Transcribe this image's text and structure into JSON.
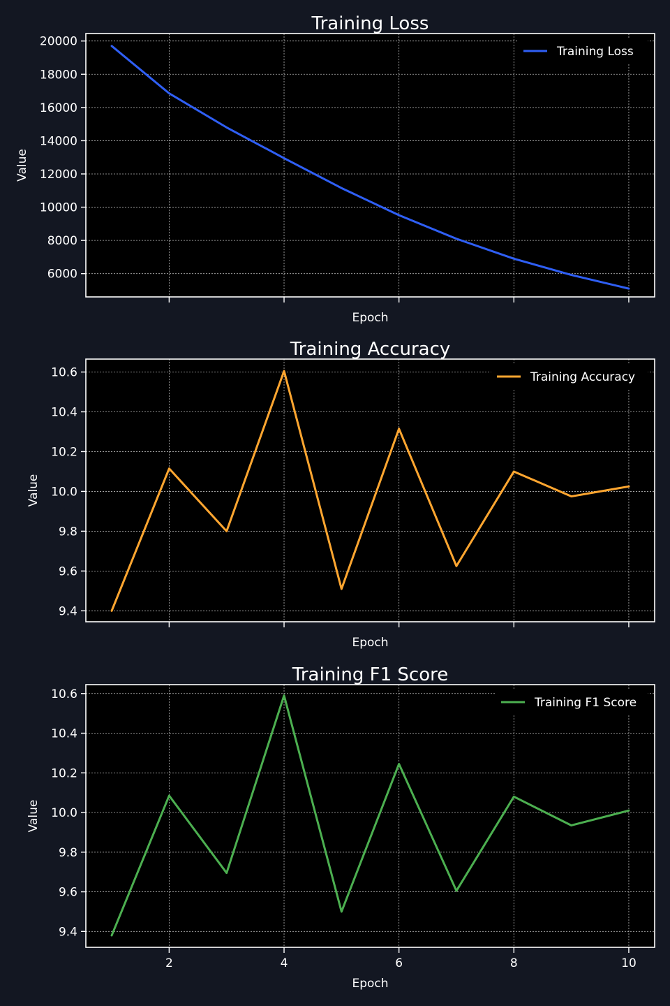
{
  "chart_data": [
    {
      "type": "line",
      "title": "Training Loss",
      "xlabel": "Epoch",
      "ylabel": "Value",
      "x": [
        1,
        2,
        3,
        4,
        5,
        6,
        7,
        8,
        9,
        10
      ],
      "xlim": [
        0.55,
        10.45
      ],
      "ylim": [
        4600,
        20450
      ],
      "xticks": [],
      "xtick_labels": [],
      "xtick_marks": [
        2,
        4,
        6,
        8,
        10
      ],
      "yticks": [
        6000,
        8000,
        10000,
        12000,
        14000,
        16000,
        18000,
        20000
      ],
      "ytick_labels": [
        "6000",
        "8000",
        "10000",
        "12000",
        "14000",
        "16000",
        "18000",
        "20000"
      ],
      "grid": true,
      "legend_position": "top-right",
      "series": [
        {
          "name": "Training Loss",
          "color": "#2f5ff5",
          "values": [
            19700,
            16850,
            14800,
            12950,
            11150,
            9520,
            8100,
            6900,
            5920,
            5100
          ]
        }
      ]
    },
    {
      "type": "line",
      "title": "Training Accuracy",
      "xlabel": "Epoch",
      "ylabel": "Value",
      "x": [
        1,
        2,
        3,
        4,
        5,
        6,
        7,
        8,
        9,
        10
      ],
      "xlim": [
        0.55,
        10.45
      ],
      "ylim": [
        9.345,
        10.665
      ],
      "xticks": [],
      "xtick_labels": [],
      "xtick_marks": [
        2,
        4,
        6,
        8,
        10
      ],
      "yticks": [
        9.4,
        9.6,
        9.8,
        10.0,
        10.2,
        10.4,
        10.6
      ],
      "ytick_labels": [
        "9.4",
        "9.6",
        "9.8",
        "10.0",
        "10.2",
        "10.4",
        "10.6"
      ],
      "grid": true,
      "legend_position": "top-right",
      "series": [
        {
          "name": "Training Accuracy",
          "color": "#ffa630",
          "values": [
            9.4,
            10.115,
            9.8,
            10.605,
            9.51,
            10.315,
            9.625,
            10.1,
            9.975,
            10.025
          ]
        }
      ]
    },
    {
      "type": "line",
      "title": "Training F1 Score",
      "xlabel": "Epoch",
      "ylabel": "Value",
      "x": [
        1,
        2,
        3,
        4,
        5,
        6,
        7,
        8,
        9,
        10
      ],
      "xlim": [
        0.55,
        10.45
      ],
      "ylim": [
        9.32,
        10.645
      ],
      "xticks": [
        2,
        4,
        6,
        8,
        10
      ],
      "xtick_labels": [
        "2",
        "4",
        "6",
        "8",
        "10"
      ],
      "xtick_marks": [
        2,
        4,
        6,
        8,
        10
      ],
      "yticks": [
        9.4,
        9.6,
        9.8,
        10.0,
        10.2,
        10.4,
        10.6
      ],
      "ytick_labels": [
        "9.4",
        "9.6",
        "9.8",
        "10.0",
        "10.2",
        "10.4",
        "10.6"
      ],
      "grid": true,
      "legend_position": "top-right",
      "series": [
        {
          "name": "Training F1 Score",
          "color": "#4caf50",
          "values": [
            9.38,
            10.085,
            9.695,
            10.59,
            9.5,
            10.245,
            9.605,
            10.08,
            9.935,
            10.01
          ]
        }
      ]
    }
  ],
  "colors": {
    "background": "#131722",
    "plot_area": "#000000",
    "text": "#ffffff"
  }
}
